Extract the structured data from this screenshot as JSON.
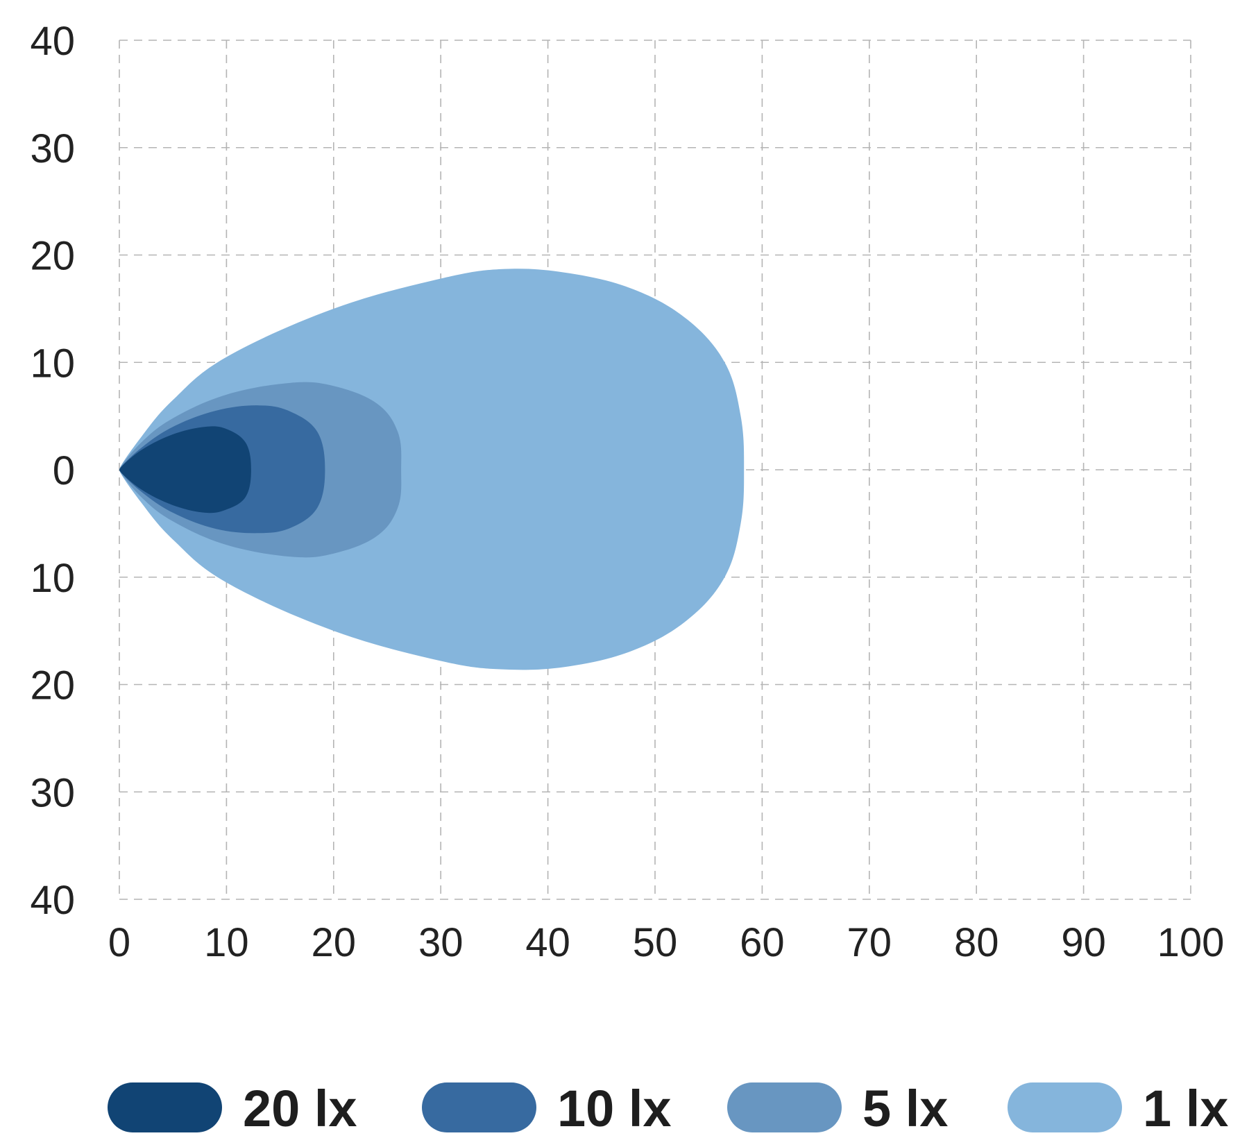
{
  "chart_data": {
    "type": "area",
    "xlim": [
      0,
      100
    ],
    "ylim": [
      -40,
      40
    ],
    "x_ticks": [
      0,
      10,
      20,
      30,
      40,
      50,
      60,
      70,
      80,
      90,
      100
    ],
    "x_tick_labels": [
      "0",
      "10",
      "20",
      "30",
      "40",
      "50",
      "60",
      "70",
      "80",
      "90",
      "100"
    ],
    "y_ticks": [
      40,
      30,
      20,
      10,
      0,
      -10,
      -20,
      -30,
      -40
    ],
    "y_tick_labels": [
      "40",
      "30",
      "20",
      "10",
      "0",
      "10",
      "20",
      "30",
      "40"
    ],
    "grid": true,
    "legend_position": "bottom",
    "series": [
      {
        "name": "1 lx",
        "color": "#85b5dc",
        "outline": [
          [
            0,
            0
          ],
          [
            2,
            3
          ],
          [
            5,
            6.5
          ],
          [
            10,
            10.5
          ],
          [
            20,
            15
          ],
          [
            30,
            17.8
          ],
          [
            36,
            18.7
          ],
          [
            42,
            18.3
          ],
          [
            48,
            16.8
          ],
          [
            53,
            14
          ],
          [
            56.5,
            10
          ],
          [
            58,
            5
          ],
          [
            58.3,
            0
          ],
          [
            58,
            -5
          ],
          [
            56.5,
            -10
          ],
          [
            53,
            -14
          ],
          [
            48,
            -16.8
          ],
          [
            42,
            -18.3
          ],
          [
            36,
            -18.6
          ],
          [
            30,
            -17.8
          ],
          [
            20,
            -15
          ],
          [
            10,
            -10.5
          ],
          [
            5,
            -6.5
          ],
          [
            2,
            -3
          ],
          [
            0,
            0
          ]
        ]
      },
      {
        "name": "5 lx",
        "color": "#6896c1",
        "outline": [
          [
            0,
            0
          ],
          [
            2,
            2.5
          ],
          [
            5,
            4.8
          ],
          [
            10,
            7
          ],
          [
            16,
            8.1
          ],
          [
            20,
            7.8
          ],
          [
            24,
            6.2
          ],
          [
            26,
            3.5
          ],
          [
            26.3,
            0
          ],
          [
            26,
            -3.5
          ],
          [
            24,
            -6.2
          ],
          [
            20,
            -7.8
          ],
          [
            16,
            -8.1
          ],
          [
            10,
            -7
          ],
          [
            5,
            -4.8
          ],
          [
            2,
            -2.5
          ],
          [
            0,
            0
          ]
        ]
      },
      {
        "name": "10 lx",
        "color": "#376aa0",
        "outline": [
          [
            0,
            0
          ],
          [
            2,
            2
          ],
          [
            5,
            4
          ],
          [
            9,
            5.5
          ],
          [
            13,
            6
          ],
          [
            16,
            5.4
          ],
          [
            18.5,
            3.5
          ],
          [
            19.2,
            0
          ],
          [
            18.5,
            -3.5
          ],
          [
            16,
            -5.4
          ],
          [
            13,
            -5.9
          ],
          [
            9,
            -5.5
          ],
          [
            5,
            -4
          ],
          [
            2,
            -2
          ],
          [
            0,
            0
          ]
        ]
      },
      {
        "name": "20 lx",
        "color": "#114474",
        "outline": [
          [
            0,
            0
          ],
          [
            2,
            1.8
          ],
          [
            5,
            3.3
          ],
          [
            8,
            4
          ],
          [
            10,
            3.8
          ],
          [
            11.8,
            2.5
          ],
          [
            12.3,
            0
          ],
          [
            11.8,
            -2.5
          ],
          [
            10,
            -3.7
          ],
          [
            8,
            -4
          ],
          [
            5,
            -3.3
          ],
          [
            2,
            -1.8
          ],
          [
            0,
            0
          ]
        ]
      }
    ]
  }
}
